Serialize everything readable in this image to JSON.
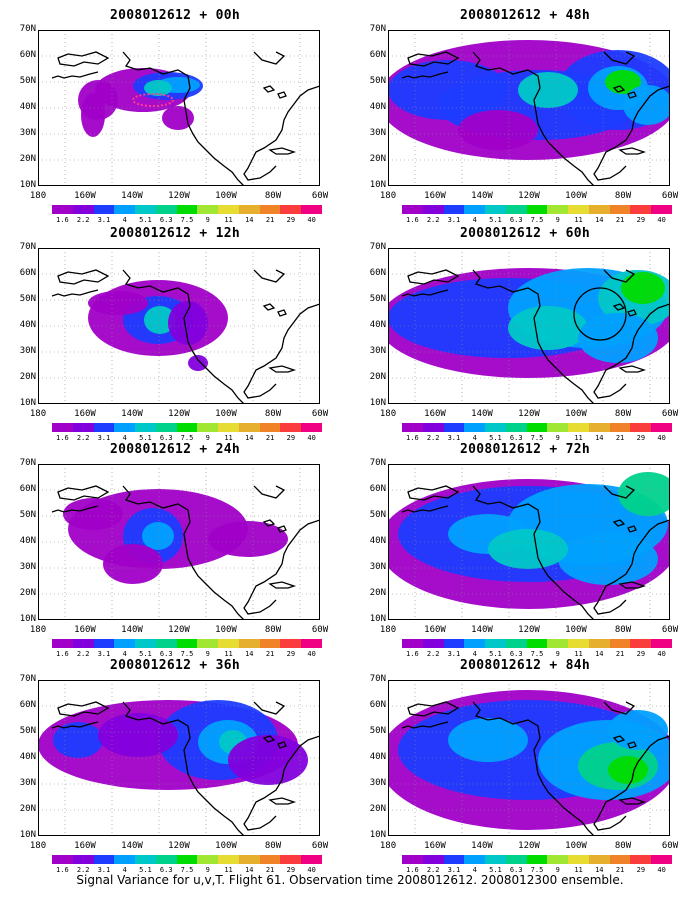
{
  "caption": "Signal Variance for u,v,T. Flight 61. Observation time 2008012612. 2008012300 ensemble.",
  "axes": {
    "lat_labels": [
      "70N",
      "60N",
      "50N",
      "40N",
      "30N",
      "20N",
      "10N"
    ],
    "lon_labels": [
      "180",
      "160W",
      "140W",
      "120W",
      "100W",
      "80W",
      "60W"
    ]
  },
  "colorbar": {
    "levels": [
      "1.6",
      "2.2",
      "3.1",
      "4",
      "5.1",
      "6.3",
      "7.5",
      "9",
      "11",
      "14",
      "21",
      "29",
      "40"
    ],
    "colors": [
      "#a000c8",
      "#8200dc",
      "#1e3cff",
      "#00a0ff",
      "#00c8c8",
      "#00d28c",
      "#00dc00",
      "#a0e632",
      "#e6dc32",
      "#e6af2d",
      "#f08228",
      "#fa3c3c",
      "#f00082"
    ]
  },
  "panels": [
    {
      "id": "p00",
      "title": "2008012612 + 00h",
      "intensity": 1
    },
    {
      "id": "p48",
      "title": "2008012612 + 48h",
      "intensity": 5
    },
    {
      "id": "p12",
      "title": "2008012612 + 12h",
      "intensity": 2
    },
    {
      "id": "p60",
      "title": "2008012612 + 60h",
      "intensity": 6
    },
    {
      "id": "p24",
      "title": "2008012612 + 24h",
      "intensity": 3
    },
    {
      "id": "p72",
      "title": "2008012612 + 72h",
      "intensity": 7
    },
    {
      "id": "p36",
      "title": "2008012612 + 36h",
      "intensity": 4
    },
    {
      "id": "p84",
      "title": "2008012612 + 84h",
      "intensity": 8
    }
  ]
}
